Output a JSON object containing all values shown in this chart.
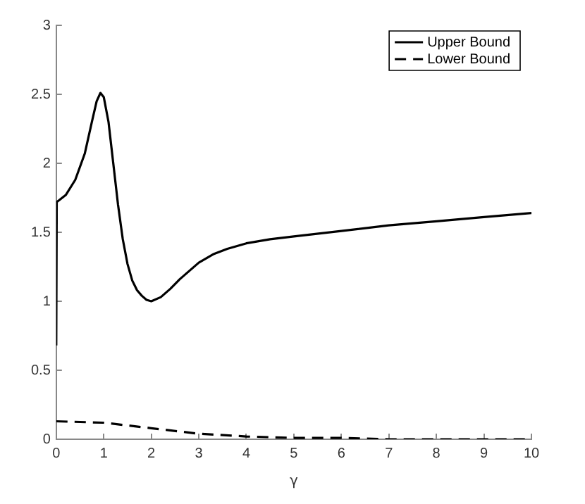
{
  "chart_data": {
    "type": "line",
    "xlabel": "γ",
    "xlim": [
      0,
      10
    ],
    "ylim": [
      0,
      3
    ],
    "xticks": [
      0,
      1,
      2,
      3,
      4,
      5,
      6,
      7,
      8,
      9,
      10
    ],
    "yticks": [
      0,
      0.5,
      1,
      1.5,
      2,
      2.5,
      3
    ],
    "grid": false,
    "legend": "top right",
    "marker": "none",
    "series": [
      {
        "name": "Upper Bound",
        "color": "#000000",
        "line_style": "solid",
        "x": [
          0,
          0.01,
          0.05,
          0.2,
          0.4,
          0.6,
          0.75,
          0.85,
          0.93,
          1.0,
          1.1,
          1.2,
          1.3,
          1.4,
          1.5,
          1.6,
          1.7,
          1.8,
          1.9,
          2.0,
          2.2,
          2.4,
          2.6,
          2.8,
          3.0,
          3.3,
          3.6,
          4.0,
          4.5,
          5,
          6,
          7,
          8,
          9,
          10
        ],
        "values": [
          0.68,
          1.72,
          1.73,
          1.77,
          1.88,
          2.07,
          2.3,
          2.45,
          2.51,
          2.48,
          2.3,
          2.0,
          1.7,
          1.45,
          1.27,
          1.15,
          1.08,
          1.04,
          1.01,
          1.0,
          1.03,
          1.09,
          1.16,
          1.22,
          1.28,
          1.34,
          1.38,
          1.42,
          1.45,
          1.47,
          1.51,
          1.55,
          1.58,
          1.61,
          1.64
        ]
      },
      {
        "name": "Lower Bound",
        "color": "#000000",
        "line_style": "dashed",
        "x": [
          0,
          1,
          2,
          3,
          4,
          5,
          6,
          7,
          8,
          9,
          10
        ],
        "values": [
          0.13,
          0.12,
          0.08,
          0.04,
          0.02,
          0.01,
          0.01,
          0,
          0,
          0,
          0
        ]
      }
    ]
  }
}
